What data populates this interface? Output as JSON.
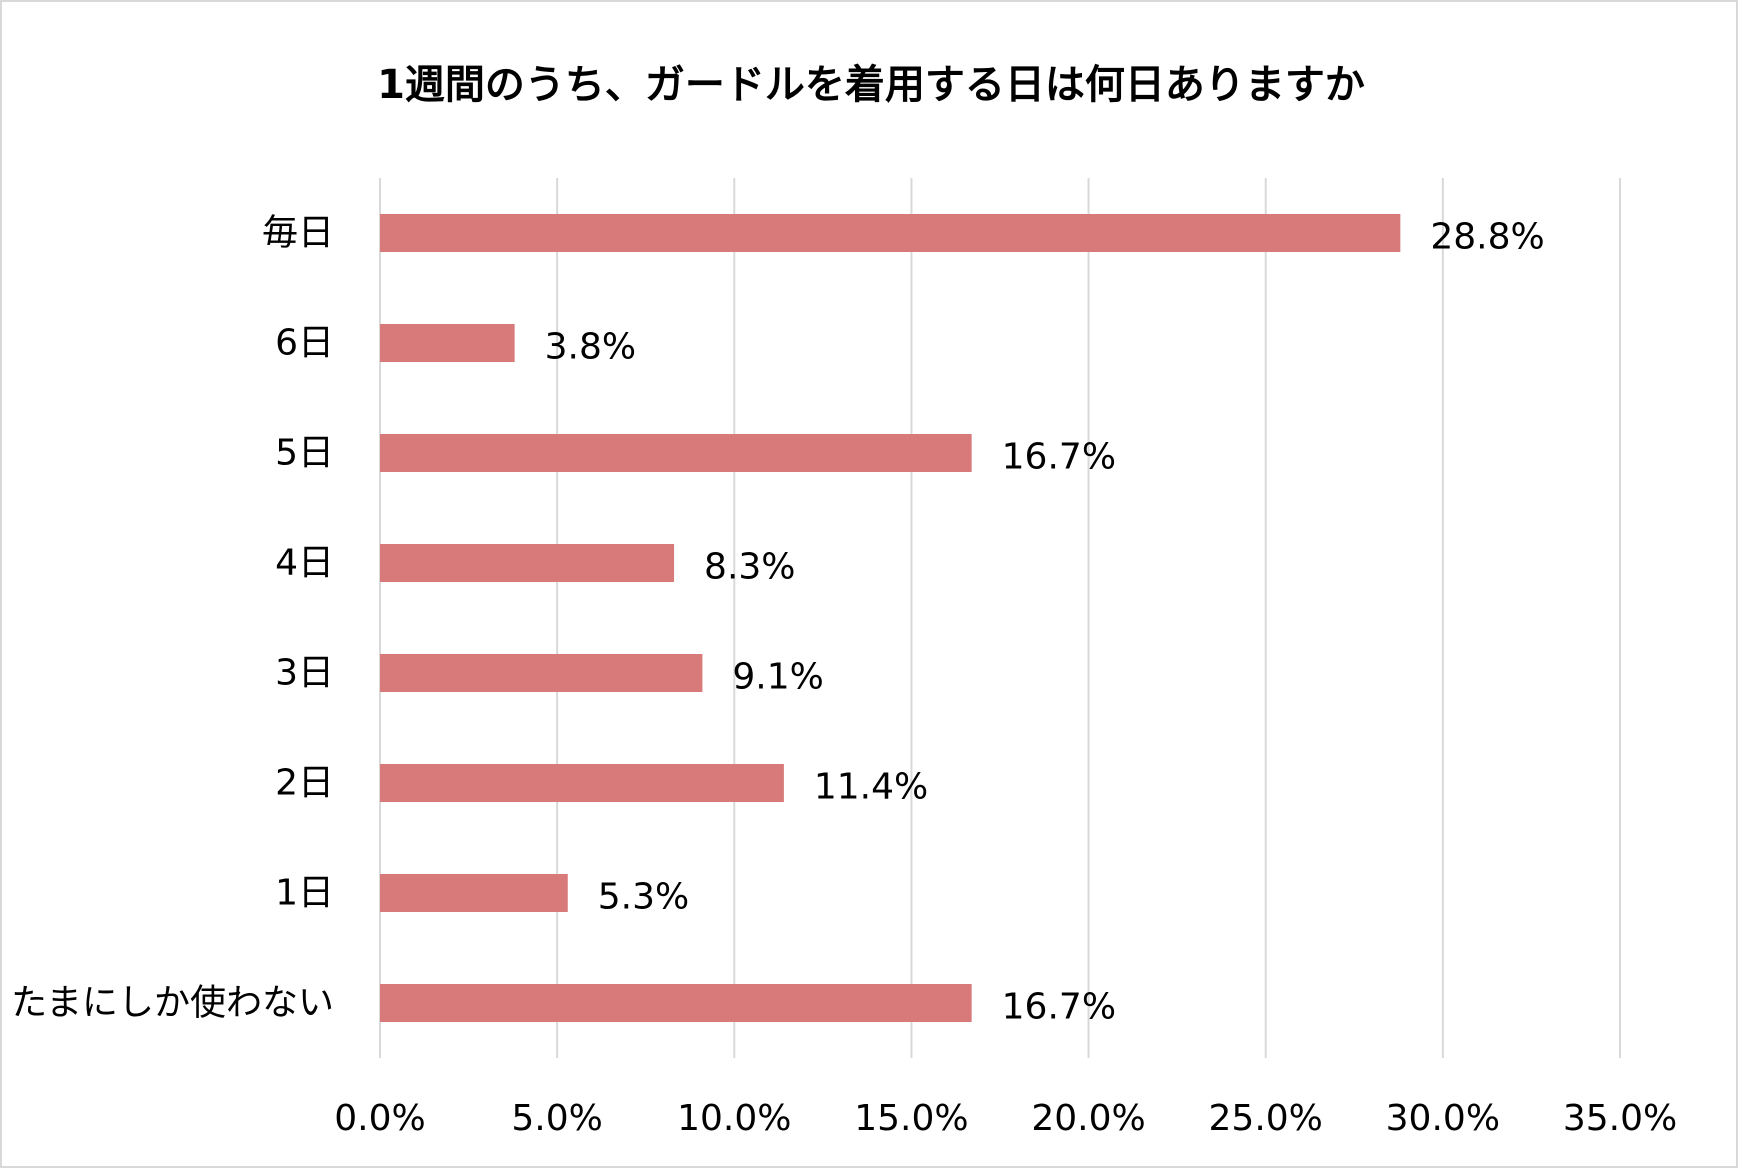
{
  "chart_data": {
    "type": "bar",
    "orientation": "horizontal",
    "title": "1週間のうち、ガードルを着用する日は何日ありますか",
    "categories": [
      "毎日",
      "6日",
      "5日",
      "4日",
      "3日",
      "2日",
      "1日",
      "たまにしか使わない"
    ],
    "values": [
      28.8,
      3.8,
      16.7,
      8.3,
      9.1,
      11.4,
      5.3,
      16.7
    ],
    "value_labels": [
      "28.8%",
      "3.8%",
      "16.7%",
      "8.3%",
      "9.1%",
      "11.4%",
      "5.3%",
      "16.7%"
    ],
    "xlim": [
      0,
      35
    ],
    "ticks": [
      0,
      5,
      10,
      15,
      20,
      25,
      30,
      35
    ],
    "tick_labels": [
      "0.0%",
      "5.0%",
      "10.0%",
      "15.0%",
      "20.0%",
      "25.0%",
      "30.0%",
      "35.0%"
    ],
    "xlabel": "",
    "ylabel": "",
    "grid": true,
    "legend": "none",
    "bar_color": "#d97a7a",
    "grid_color": "#d9d9d9"
  }
}
